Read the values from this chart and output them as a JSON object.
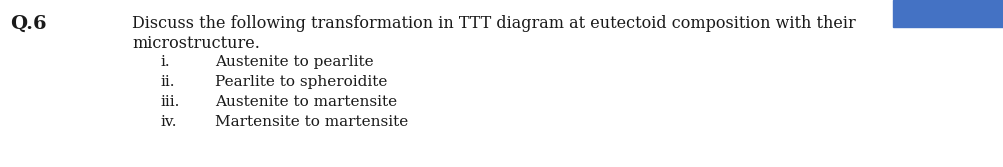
{
  "question_label": "Q.6",
  "main_text_line1": "Discuss the following transformation in TTT diagram at eutectoid composition with their",
  "main_text_line2": "microstructure.",
  "items": [
    {
      "roman": "i.",
      "text": "Austenite to pearlite"
    },
    {
      "roman": "ii.",
      "text": "Pearlite to spheroidite"
    },
    {
      "roman": "iii.",
      "text": "Austenite to martensite"
    },
    {
      "roman": "iv.",
      "text": "Martensite to martensite"
    }
  ],
  "background_color": "#ffffff",
  "text_color": "#1a1a1a",
  "blue_rect_color": "#4472C4",
  "q_label_fontsize": 14,
  "main_fontsize": 11.5,
  "item_fontsize": 11.0,
  "font_family": "serif"
}
